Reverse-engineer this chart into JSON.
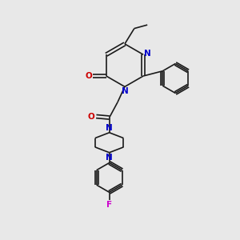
{
  "bg_color": "#e8e8e8",
  "bond_color": "#1a1a1a",
  "N_color": "#0000cc",
  "O_color": "#cc0000",
  "F_color": "#cc00cc",
  "line_width": 1.2,
  "doffset": 0.06,
  "xlim": [
    0,
    10
  ],
  "ylim": [
    0,
    10
  ],
  "figsize": [
    3.0,
    3.0
  ],
  "dpi": 100
}
